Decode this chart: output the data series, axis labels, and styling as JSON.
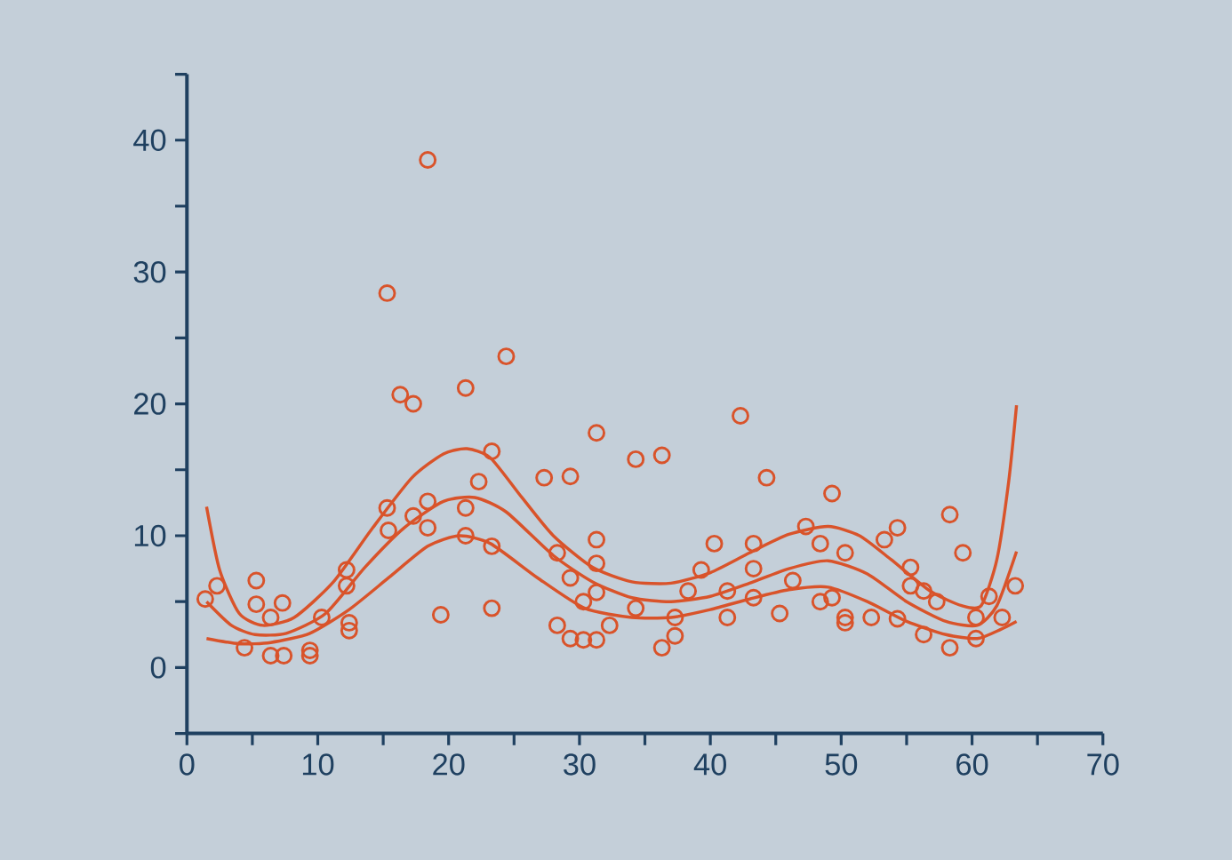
{
  "chart_data": {
    "type": "scatter",
    "xlim": [
      0,
      70
    ],
    "ylim": [
      -5,
      45
    ],
    "xticks": [
      0,
      {
        "value": 5,
        "label": null
      },
      10,
      {
        "value": 15,
        "label": null
      },
      20,
      {
        "value": 25,
        "label": null
      },
      30,
      {
        "value": 35,
        "label": null
      },
      40,
      {
        "value": 45,
        "label": null
      },
      50,
      {
        "value": 55,
        "label": null
      },
      60,
      {
        "value": 65,
        "label": null
      },
      70
    ],
    "yticks": [
      {
        "value": -5,
        "label": null
      },
      0,
      {
        "value": 5,
        "label": null
      },
      10,
      {
        "value": 15,
        "label": null
      },
      20,
      {
        "value": 25,
        "label": null
      },
      30,
      {
        "value": 35,
        "label": null
      },
      40,
      {
        "value": 45,
        "label": null
      }
    ],
    "series": [
      {
        "color": "#d9532a",
        "marker": "circle",
        "x": [
          1.4,
          2.3,
          5.3,
          5.3,
          7.3,
          4.4,
          6.4,
          7.4,
          6.4,
          9.4,
          9.4,
          10.3,
          12.2,
          12.2,
          12.4,
          12.4,
          15.3,
          15.3,
          15.4,
          16.3,
          17.3,
          17.3,
          18.4,
          18.4,
          18.4,
          19.4,
          21.3,
          21.3,
          21.3,
          22.3,
          23.3,
          23.3,
          23.3,
          24.4,
          27.3,
          28.3,
          28.3,
          29.3,
          29.3,
          29.3,
          30.3,
          30.3,
          31.3,
          31.3,
          31.3,
          31.3,
          31.3,
          32.3,
          34.3,
          34.3,
          36.3,
          36.3,
          37.3,
          37.3,
          38.3,
          39.3,
          40.3,
          41.3,
          41.3,
          42.3,
          43.3,
          43.3,
          43.3,
          44.3,
          45.3,
          46.3,
          47.3,
          48.4,
          48.4,
          49.3,
          49.3,
          50.3,
          50.3,
          50.3,
          52.3,
          53.3,
          54.3,
          54.3,
          55.3,
          55.3,
          56.3,
          56.3,
          57.3,
          58.3,
          58.3,
          59.3,
          60.3,
          60.3,
          61.3,
          62.3,
          63.3
        ],
        "values": [
          5.2,
          6.2,
          6.6,
          4.8,
          4.9,
          1.5,
          0.9,
          0.9,
          3.8,
          1.3,
          0.9,
          3.8,
          7.4,
          6.2,
          2.8,
          3.4,
          28.4,
          12.1,
          10.4,
          20.7,
          20.0,
          11.5,
          38.5,
          12.6,
          10.6,
          4.0,
          21.2,
          12.1,
          10.0,
          14.1,
          16.4,
          9.2,
          4.5,
          23.6,
          14.4,
          8.7,
          3.2,
          14.5,
          6.8,
          2.2,
          5.0,
          2.1,
          17.8,
          9.7,
          7.9,
          5.7,
          2.1,
          3.2,
          15.8,
          4.5,
          16.1,
          1.5,
          2.4,
          3.8,
          5.8,
          7.4,
          9.4,
          5.8,
          3.8,
          19.1,
          9.4,
          7.5,
          5.3,
          14.4,
          4.1,
          6.6,
          10.7,
          9.4,
          5.0,
          13.2,
          5.3,
          8.7,
          3.8,
          3.4,
          3.8,
          9.7,
          10.6,
          3.7,
          7.6,
          6.2,
          5.8,
          2.5,
          5.0,
          11.6,
          1.5,
          8.7,
          3.8,
          2.2,
          5.4,
          3.8,
          6.2
        ]
      },
      {
        "type": "line",
        "color": "#d9532a",
        "marker": "none",
        "line_style": "solid",
        "x": [
          1.5,
          2.5,
          4,
          5.8,
          8.2,
          11.2,
          14.2,
          17.2,
          19.6,
          21.4,
          23.2,
          25.6,
          28,
          31,
          34,
          37,
          40,
          43,
          46,
          49,
          51.4,
          53.8,
          56.8,
          59.2,
          60.7,
          61.9,
          62.8,
          63.4
        ],
        "values": [
          12.2,
          7.4,
          4.1,
          3.2,
          3.8,
          6.5,
          10.6,
          14.4,
          16.2,
          16.6,
          15.9,
          12.9,
          10,
          7.6,
          6.5,
          6.4,
          7.2,
          8.7,
          10.1,
          10.7,
          10,
          8.2,
          5.8,
          4.7,
          4.7,
          8.2,
          14.1,
          19.9
        ]
      },
      {
        "type": "line",
        "color": "#d9532a",
        "marker": "none",
        "line_style": "solid",
        "x": [
          1.5,
          3.4,
          5.2,
          7.6,
          10.6,
          13.6,
          16.6,
          19.6,
          22,
          24.4,
          28,
          31,
          34,
          37,
          40,
          43,
          46,
          49,
          52,
          55,
          58,
          60.4,
          61.9,
          63.4
        ],
        "values": [
          5.0,
          3.2,
          2.5,
          2.6,
          4.1,
          7.6,
          10.6,
          12.6,
          12.9,
          11.8,
          8.5,
          6.5,
          5.3,
          5.0,
          5.4,
          6.4,
          7.5,
          8.1,
          7.1,
          5.0,
          3.5,
          3.2,
          4.7,
          8.8
        ]
      },
      {
        "type": "line",
        "color": "#d9532a",
        "marker": "none",
        "line_style": "solid",
        "x": [
          1.5,
          4,
          6.4,
          9.4,
          12.4,
          15.4,
          18.4,
          20.8,
          23.2,
          26.8,
          30.4,
          34,
          37,
          40,
          43,
          46,
          49,
          52,
          55,
          58,
          60.4,
          62.2,
          63.4
        ],
        "values": [
          2.2,
          1.8,
          1.9,
          2.6,
          4.4,
          6.8,
          9.2,
          10,
          9.4,
          6.8,
          4.5,
          3.8,
          3.8,
          4.4,
          5.2,
          5.9,
          6.1,
          5.0,
          3.5,
          2.5,
          2.2,
          2.9,
          3.5
        ]
      }
    ]
  }
}
